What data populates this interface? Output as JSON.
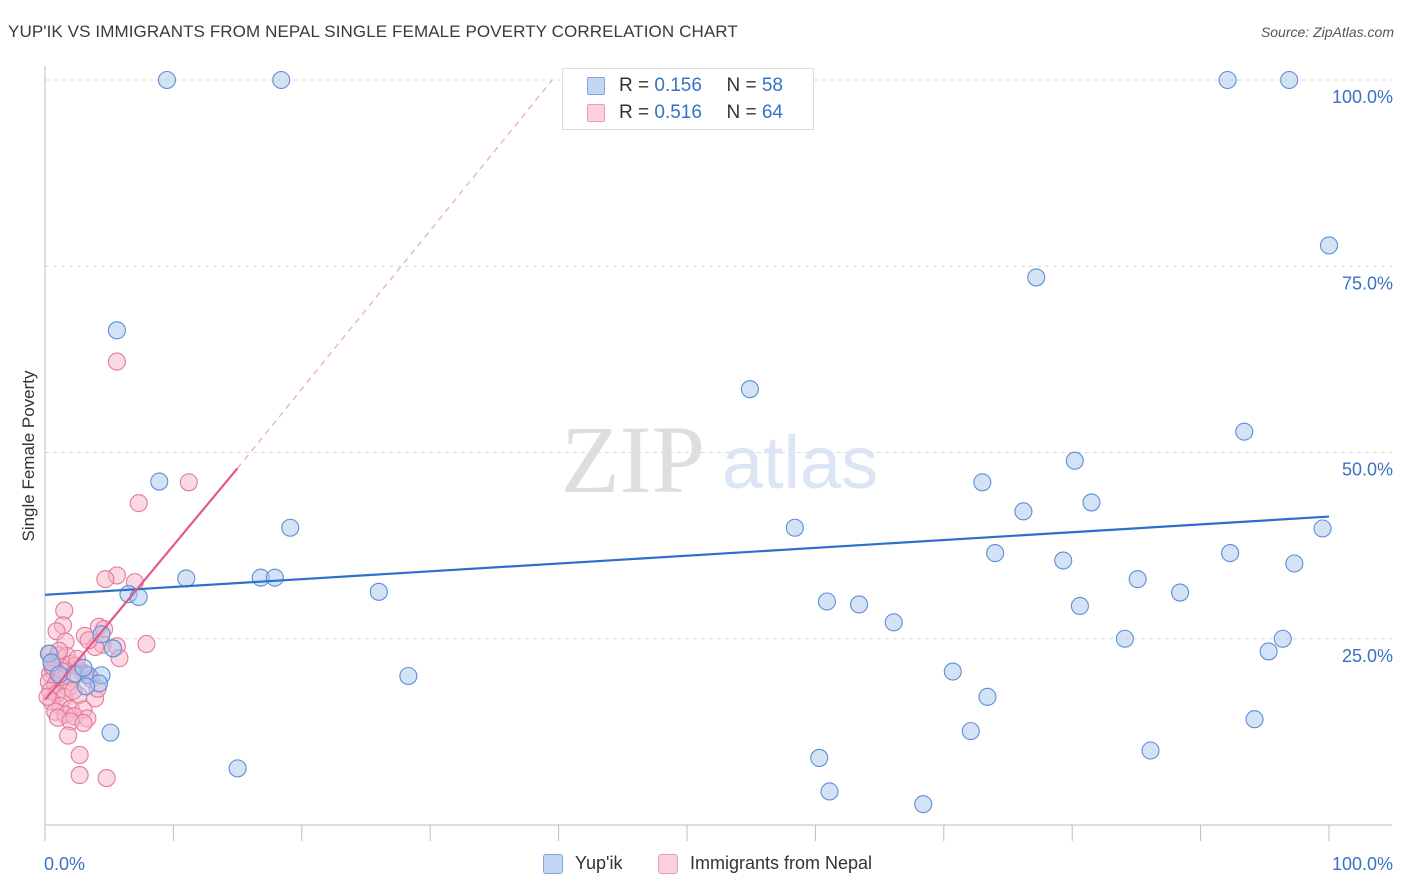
{
  "header": {
    "title": "YUP'IK VS IMMIGRANTS FROM NEPAL SINGLE FEMALE POVERTY CORRELATION CHART",
    "source": "Source: ZipAtlas.com"
  },
  "watermark": {
    "zip": "ZIP",
    "atlas": "atlas"
  },
  "legend": {
    "rows": [
      {
        "r_label": "R = ",
        "r_value": "0.156",
        "n_label": "N = ",
        "n_value": "58",
        "color": "#a9c6ee"
      },
      {
        "r_label": "R = ",
        "r_value": "0.516",
        "n_label": "N = ",
        "n_value": "64",
        "color": "#f5b3c8"
      }
    ]
  },
  "bottom_legend": {
    "series1": "Yup'ik",
    "series2": "Immigrants from Nepal"
  },
  "colors": {
    "blue_fill": "#a9c6ee",
    "blue_stroke": "#5b8fd6",
    "blue_line": "#2e6fcb",
    "pink_fill": "#f5b3c8",
    "pink_stroke": "#e47a9c",
    "pink_line": "#e3588a",
    "axis_label": "#3a72c4",
    "grid": "#d9d9d9"
  },
  "chart_data": {
    "type": "scatter",
    "title": "YUP'IK VS IMMIGRANTS FROM NEPAL SINGLE FEMALE POVERTY CORRELATION CHART",
    "xlabel": "",
    "ylabel": "Single Female Poverty",
    "xlim": [
      0,
      100
    ],
    "ylim": [
      0,
      100
    ],
    "x_tick_labels": [
      "0.0%",
      "100.0%"
    ],
    "y_ticks": [
      25,
      50,
      75,
      100
    ],
    "y_tick_labels": [
      "25.0%",
      "50.0%",
      "75.0%",
      "100.0%"
    ],
    "grid": true,
    "series": [
      {
        "name": "Yup'ik",
        "R": 0.156,
        "N": 58,
        "trend": {
          "x0": 0,
          "y0": 30.9,
          "x1": 100,
          "y1": 41.4
        },
        "points": [
          [
            9.5,
            100
          ],
          [
            18.4,
            100
          ],
          [
            92.1,
            100
          ],
          [
            96.9,
            100
          ],
          [
            100,
            77.8
          ],
          [
            77.2,
            73.5
          ],
          [
            5.6,
            66.4
          ],
          [
            54.9,
            58.5
          ],
          [
            93.4,
            52.8
          ],
          [
            80.2,
            48.9
          ],
          [
            8.9,
            46.1
          ],
          [
            73.0,
            46.0
          ],
          [
            81.5,
            43.3
          ],
          [
            76.2,
            42.1
          ],
          [
            19.1,
            39.9
          ],
          [
            58.4,
            39.9
          ],
          [
            99.5,
            39.8
          ],
          [
            6.5,
            31.0
          ],
          [
            7.3,
            30.6
          ],
          [
            11.0,
            33.1
          ],
          [
            16.8,
            33.2
          ],
          [
            17.9,
            33.2
          ],
          [
            26.0,
            31.3
          ],
          [
            60.9,
            30.0
          ],
          [
            63.4,
            29.6
          ],
          [
            80.6,
            29.4
          ],
          [
            66.1,
            27.2
          ],
          [
            74.0,
            36.5
          ],
          [
            79.3,
            35.5
          ],
          [
            92.3,
            36.5
          ],
          [
            85.1,
            33.0
          ],
          [
            88.4,
            31.2
          ],
          [
            97.3,
            35.1
          ],
          [
            84.1,
            25.0
          ],
          [
            96.4,
            25.0
          ],
          [
            95.3,
            23.3
          ],
          [
            4.4,
            25.6
          ],
          [
            5.3,
            23.7
          ],
          [
            0.3,
            23.0
          ],
          [
            0.5,
            21.8
          ],
          [
            1.1,
            20.2
          ],
          [
            2.3,
            20.3
          ],
          [
            3.4,
            20.1
          ],
          [
            4.4,
            20.1
          ],
          [
            4.2,
            19.0
          ],
          [
            3.2,
            18.6
          ],
          [
            28.3,
            20.0
          ],
          [
            70.7,
            20.6
          ],
          [
            73.4,
            17.2
          ],
          [
            72.1,
            12.6
          ],
          [
            94.2,
            14.2
          ],
          [
            5.1,
            12.4
          ],
          [
            15.0,
            7.6
          ],
          [
            60.3,
            9.0
          ],
          [
            86.1,
            10.0
          ],
          [
            61.1,
            4.5
          ],
          [
            68.4,
            2.8
          ],
          [
            3.0,
            21.1
          ]
        ]
      },
      {
        "name": "Immigrants from Nepal",
        "R": 0.516,
        "N": 64,
        "trend": {
          "x0": 0,
          "y0": 16.8,
          "x1": 15,
          "y1": 47.9
        },
        "trend_dashed": {
          "x0": 15,
          "y0": 47.9,
          "x1": 39.5,
          "y1": 100
        },
        "points": [
          [
            5.6,
            62.2
          ],
          [
            11.2,
            46.0
          ],
          [
            7.3,
            43.2
          ],
          [
            5.6,
            33.5
          ],
          [
            4.7,
            33.0
          ],
          [
            7.0,
            32.6
          ],
          [
            1.5,
            28.8
          ],
          [
            1.4,
            26.8
          ],
          [
            4.2,
            26.6
          ],
          [
            4.6,
            26.3
          ],
          [
            0.9,
            26.0
          ],
          [
            3.1,
            25.4
          ],
          [
            7.9,
            24.3
          ],
          [
            4.5,
            24.2
          ],
          [
            5.6,
            24.0
          ],
          [
            1.6,
            24.6
          ],
          [
            3.9,
            23.9
          ],
          [
            0.4,
            23.0
          ],
          [
            1.0,
            22.8
          ],
          [
            1.7,
            22.7
          ],
          [
            5.8,
            22.4
          ],
          [
            0.5,
            21.9
          ],
          [
            1.2,
            21.2
          ],
          [
            2.0,
            21.6
          ],
          [
            2.4,
            21.4
          ],
          [
            0.6,
            20.8
          ],
          [
            1.4,
            20.6
          ],
          [
            2.9,
            20.5
          ],
          [
            3.2,
            20.2
          ],
          [
            0.4,
            20.3
          ],
          [
            1.0,
            19.6
          ],
          [
            2.1,
            19.7
          ],
          [
            0.3,
            19.2
          ],
          [
            0.8,
            18.8
          ],
          [
            1.8,
            18.4
          ],
          [
            0.4,
            18.0
          ],
          [
            0.9,
            17.6
          ],
          [
            1.5,
            17.2
          ],
          [
            2.6,
            17.4
          ],
          [
            3.9,
            17.0
          ],
          [
            0.5,
            16.6
          ],
          [
            1.2,
            16.0
          ],
          [
            2.0,
            15.6
          ],
          [
            3.0,
            15.5
          ],
          [
            0.8,
            15.2
          ],
          [
            1.6,
            14.8
          ],
          [
            2.3,
            14.6
          ],
          [
            3.3,
            14.3
          ],
          [
            1.0,
            14.4
          ],
          [
            2.0,
            13.9
          ],
          [
            3.0,
            13.7
          ],
          [
            1.8,
            12.0
          ],
          [
            2.7,
            9.4
          ],
          [
            2.7,
            6.7
          ],
          [
            4.8,
            6.3
          ],
          [
            0.6,
            21.3
          ],
          [
            1.3,
            19.9
          ],
          [
            2.2,
            18.0
          ],
          [
            3.6,
            19.6
          ],
          [
            0.2,
            17.2
          ],
          [
            4.1,
            18.3
          ],
          [
            2.5,
            22.3
          ],
          [
            1.1,
            23.4
          ],
          [
            3.4,
            24.8
          ]
        ]
      }
    ]
  }
}
